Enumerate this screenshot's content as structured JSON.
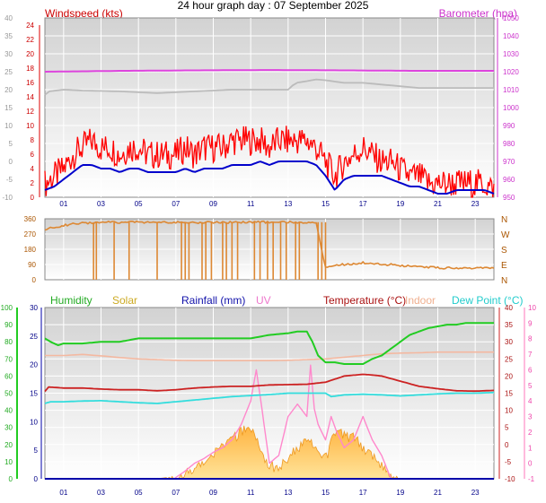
{
  "title": "24 hour graph day : 07 September 2025",
  "colors": {
    "wind_speed": "#ff0000",
    "wind_avg": "#0000cc",
    "barometer": "#dd44dd",
    "barometer_prev": "#bbbbbb",
    "direction": "#dd8833",
    "humidity": "#22cc22",
    "solar": "#ffcc55",
    "rainfall": "#0000aa",
    "uv": "#ff88cc",
    "temperature": "#cc2222",
    "indoor": "#f4b8a0",
    "dewpoint": "#33dddd",
    "grid": "#ffffff",
    "plot_bg_top": "#d4d4d4",
    "plot_bg_bottom": "#ffffff"
  },
  "chart_data": [
    {
      "type": "line",
      "panel": "wind-barometer",
      "x_ticks": [
        "01",
        "03",
        "05",
        "07",
        "09",
        "11",
        "13",
        "15",
        "17",
        "19",
        "21",
        "23"
      ],
      "legend": [
        "Windspeed (kts)",
        "Barometer (hpa)"
      ],
      "axes": {
        "left_outer": {
          "ticks": [
            "-10",
            "-5",
            "0",
            "5",
            "10",
            "15",
            "20",
            "25",
            "30",
            "35",
            "40"
          ]
        },
        "left_inner": {
          "label": "Windspeed (kts)",
          "ticks": [
            "0",
            "2",
            "4",
            "6",
            "8",
            "10",
            "12",
            "14",
            "16",
            "18",
            "20",
            "22",
            "24"
          ],
          "ylim": [
            0,
            25
          ]
        },
        "right": {
          "label": "Barometer (hpa)",
          "ticks": [
            "950",
            "960",
            "970",
            "980",
            "990",
            "1000",
            "1010",
            "1020",
            "1030",
            "1040",
            "1050"
          ],
          "ylim": [
            945,
            1050
          ]
        }
      },
      "series": [
        {
          "name": "Windspeed (kts)",
          "kind": "gust",
          "hours": [
            0,
            0.5,
            1,
            1.5,
            2,
            2.5,
            3,
            3.5,
            4,
            4.5,
            5,
            5.5,
            6,
            6.5,
            7,
            7.5,
            8,
            8.5,
            9,
            9.5,
            10,
            10.5,
            11,
            11.5,
            12,
            12.5,
            13,
            13.5,
            14,
            14.5,
            15,
            15.5,
            16,
            16.5,
            17,
            17.5,
            18,
            18.5,
            19,
            19.5,
            20,
            20.5,
            21,
            21.5,
            22,
            22.5,
            23,
            23.5,
            24
          ],
          "values": [
            2,
            3,
            4,
            6,
            7,
            8,
            7,
            7,
            6,
            7,
            7,
            6,
            6,
            6,
            6,
            7,
            6,
            7,
            7,
            7,
            8,
            8,
            8,
            8,
            7,
            8,
            8,
            8,
            8,
            7,
            5,
            3,
            5,
            6,
            7,
            6,
            5,
            5,
            4,
            3,
            3,
            2,
            2,
            2,
            2,
            2,
            2,
            2,
            1
          ]
        },
        {
          "name": "Average",
          "kind": "average",
          "hours": [
            0,
            0.5,
            1,
            1.5,
            2,
            2.5,
            3,
            3.5,
            4,
            4.5,
            5,
            5.5,
            6,
            6.5,
            7,
            7.5,
            8,
            8.5,
            9,
            9.5,
            10,
            10.5,
            11,
            11.5,
            12,
            12.5,
            13,
            13.5,
            14,
            14.5,
            15,
            15.5,
            16,
            16.5,
            17,
            17.5,
            18,
            18.5,
            19,
            19.5,
            20,
            20.5,
            21,
            21.5,
            22,
            22.5,
            23,
            23.5,
            24
          ],
          "values": [
            1,
            1.5,
            2.5,
            3.5,
            4.5,
            4.5,
            4,
            4,
            3.5,
            4,
            4,
            3.5,
            3.5,
            3.5,
            3.5,
            4,
            3.5,
            4,
            4,
            4,
            4.5,
            4.5,
            4.5,
            5,
            4.5,
            5,
            5,
            5,
            5,
            4.5,
            3,
            1,
            2.5,
            3,
            3,
            3,
            3,
            2.5,
            2,
            1.5,
            1.5,
            1,
            0.5,
            0.5,
            1,
            1,
            1,
            1,
            0.5
          ]
        },
        {
          "name": "Barometer (hpa)",
          "kind": "barometer",
          "hours": [
            0,
            4,
            8,
            12,
            16,
            20,
            24
          ],
          "values": [
            1018.5,
            1019,
            1019.3,
            1019.5,
            1019.3,
            1019,
            1019
          ]
        },
        {
          "name": "Barometer previous",
          "kind": "barometer_prev",
          "hours": [
            0,
            0.2,
            1,
            2,
            4,
            6,
            8,
            10,
            12,
            13,
            13.4,
            14,
            14.5,
            15,
            16,
            17,
            18,
            19,
            20,
            22,
            24
          ],
          "values": [
            1005,
            1007,
            1008,
            1007.5,
            1007,
            1006,
            1007,
            1008,
            1008,
            1008,
            1012,
            1013,
            1014,
            1013.5,
            1012,
            1012,
            1011,
            1010,
            1009,
            1009,
            1009
          ]
        }
      ]
    },
    {
      "type": "line",
      "panel": "wind-direction",
      "x_ticks": [
        "01",
        "03",
        "05",
        "07",
        "09",
        "11",
        "13",
        "15",
        "17",
        "19",
        "21",
        "23"
      ],
      "axes": {
        "left": {
          "ticks": [
            "0",
            "90",
            "180",
            "270",
            "360"
          ],
          "ylim": [
            0,
            360
          ]
        },
        "right": {
          "ticks": [
            "N",
            "E",
            "S",
            "W",
            "N"
          ]
        }
      },
      "series": [
        {
          "name": "Direction",
          "hours": [
            0,
            0.5,
            1,
            1.5,
            2,
            2.5,
            3,
            3.5,
            4,
            4.5,
            5,
            5.5,
            6,
            6.5,
            7,
            7.5,
            8,
            8.5,
            9,
            9.5,
            10,
            10.5,
            11,
            11.5,
            12,
            12.5,
            13,
            13.5,
            14,
            14.5,
            15,
            15.5,
            16,
            16.5,
            17,
            17.5,
            18,
            18.5,
            19,
            19.5,
            20,
            20.5,
            21,
            21.5,
            22,
            22.5,
            23,
            23.5,
            24
          ],
          "values": [
            300,
            310,
            320,
            330,
            335,
            335,
            338,
            340,
            338,
            340,
            340,
            340,
            338,
            340,
            340,
            338,
            338,
            340,
            340,
            340,
            338,
            340,
            340,
            340,
            340,
            340,
            340,
            340,
            340,
            340,
            70,
            85,
            90,
            95,
            100,
            95,
            90,
            90,
            85,
            80,
            80,
            75,
            70,
            70,
            70,
            70,
            68,
            68,
            68
          ],
          "drops_to_zero_at": [
            2.6,
            2.75,
            3.7,
            4.5,
            6.0,
            7.3,
            7.5,
            7.7,
            8.4,
            8.6,
            8.9,
            9.5,
            9.7,
            10.0,
            10.3,
            11.2,
            11.5,
            11.9,
            12.2,
            12.6,
            12.9,
            13.4,
            13.6,
            14.6,
            14.8,
            15.0
          ]
        }
      ]
    },
    {
      "type": "line",
      "panel": "temperature-humidity",
      "x_ticks": [
        "01",
        "03",
        "05",
        "07",
        "09",
        "11",
        "13",
        "15",
        "17",
        "19",
        "21",
        "23"
      ],
      "legend": [
        "Humidity",
        "Solar",
        "Rainfall (mm)",
        "UV",
        "Temperature (°C)",
        "Indoor",
        "Dew Point (°C)"
      ],
      "axes": {
        "humidity_outer": {
          "ticks": [
            "0",
            "10",
            "20",
            "30",
            "40",
            "50",
            "60",
            "70",
            "80",
            "90",
            "100"
          ],
          "ylim": [
            0,
            100
          ]
        },
        "rain_inner": {
          "ticks": [
            "0",
            "5",
            "10",
            "15",
            "20",
            "25",
            "30"
          ],
          "ylim": [
            0,
            30
          ]
        },
        "temperature_right": {
          "ticks": [
            "-10",
            "-5",
            "0",
            "5",
            "10",
            "15",
            "20",
            "25",
            "30",
            "35",
            "40"
          ],
          "ylim": [
            -10,
            40
          ]
        },
        "uv_outer_right": {
          "ticks": [
            "-1",
            "0",
            "1",
            "2",
            "3",
            "4",
            "5",
            "6",
            "7",
            "8",
            "9",
            "10"
          ],
          "ylim": [
            -1,
            10
          ]
        }
      },
      "series": [
        {
          "name": "Humidity",
          "hours": [
            0,
            0.3,
            0.7,
            1,
            2,
            3,
            4,
            5,
            6,
            7,
            8,
            9,
            10,
            11,
            12,
            13,
            13.5,
            14,
            14.3,
            14.6,
            15,
            15.5,
            16,
            17,
            17.5,
            18,
            18.5,
            19,
            19.5,
            20,
            20.5,
            21,
            21.5,
            22,
            22.5,
            23,
            24
          ],
          "values": [
            82,
            80,
            78,
            79,
            79,
            80,
            80,
            82,
            82,
            82,
            82,
            82,
            82,
            82,
            84,
            85,
            86,
            86,
            80,
            72,
            68,
            68,
            67,
            67,
            70,
            72,
            76,
            80,
            84,
            86,
            88,
            89,
            90,
            90,
            91,
            91,
            91
          ]
        },
        {
          "name": "Temperature (°C)",
          "hours": [
            0,
            0.2,
            1,
            2,
            3,
            4,
            5,
            6,
            7,
            8,
            9,
            10,
            11,
            12,
            13,
            14,
            15,
            16,
            17,
            17.5,
            18,
            19,
            20,
            21,
            22,
            23,
            24
          ],
          "values": [
            15.5,
            16.8,
            16.5,
            16.5,
            16.2,
            16,
            16,
            15.7,
            16,
            16.5,
            16.8,
            17,
            17,
            17.4,
            17.5,
            17.6,
            18.2,
            20,
            20.5,
            20.3,
            20,
            18.5,
            17,
            16.3,
            15.7,
            15.6,
            15.8
          ]
        },
        {
          "name": "Indoor",
          "hours": [
            0,
            1,
            2,
            3,
            4,
            5,
            6,
            7,
            8,
            9,
            10,
            11,
            12,
            13,
            14,
            15,
            16,
            17,
            18,
            19,
            20,
            21,
            22,
            23,
            24
          ],
          "values": [
            26,
            26,
            26.3,
            25.9,
            25.4,
            25,
            24.8,
            24.6,
            24.5,
            24.5,
            24.5,
            24.5,
            24.5,
            24.6,
            24.8,
            25,
            25.5,
            26,
            26.5,
            26.7,
            26.8,
            27,
            27,
            27,
            27
          ]
        },
        {
          "name": "Dew Point (°C)",
          "hours": [
            0,
            0.3,
            1,
            2,
            3,
            4,
            5,
            6,
            7,
            8,
            9,
            10,
            11,
            12,
            13,
            14,
            15,
            15.3,
            16,
            17,
            18,
            19,
            20,
            21,
            22,
            23,
            24
          ],
          "values": [
            12,
            12.5,
            12.5,
            12.7,
            12.8,
            12.5,
            12.2,
            12,
            12.5,
            13,
            13.5,
            14,
            14.3,
            14.6,
            15,
            15,
            15,
            14,
            14.5,
            14.7,
            14.5,
            14.2,
            14.5,
            14.8,
            15,
            15,
            15.2
          ]
        },
        {
          "name": "Solar",
          "hours": [
            0,
            6,
            6.5,
            7,
            7.5,
            8,
            8.5,
            9,
            9.5,
            10,
            10.5,
            11,
            11.5,
            12,
            12.5,
            13,
            13.5,
            14,
            14.5,
            15,
            15.5,
            16,
            16.5,
            17,
            17.5,
            18,
            18.5,
            19,
            24
          ],
          "values": [
            0,
            0,
            0.02,
            0.08,
            0.15,
            0.25,
            0.4,
            0.5,
            0.6,
            0.72,
            0.85,
            0.95,
            0.55,
            0.3,
            0.25,
            0.45,
            0.55,
            0.7,
            0.6,
            0.4,
            0.85,
            0.8,
            0.75,
            0.6,
            0.45,
            0.3,
            0.1,
            0,
            0
          ]
        },
        {
          "name": "UV",
          "hours": [
            0,
            6.9,
            7.5,
            8,
            8.5,
            9,
            9.5,
            10,
            10.5,
            11,
            11.3,
            11.6,
            12,
            12.5,
            13,
            13.5,
            14,
            14.2,
            14.4,
            14.6,
            15,
            15.3,
            15.6,
            16,
            16.5,
            17,
            17.5,
            18,
            18.5,
            24
          ],
          "values": [
            -1,
            -1,
            -0.5,
            0,
            0.3,
            0.7,
            1,
            1.5,
            2.5,
            4,
            6,
            3.5,
            0,
            0.5,
            3,
            3.8,
            3,
            6.3,
            3.5,
            2.5,
            1.5,
            3,
            2,
            1,
            1.5,
            3,
            1.5,
            0.5,
            -1,
            -1
          ]
        },
        {
          "name": "Rainfall (mm)",
          "hours": [
            0,
            24
          ],
          "values": [
            0,
            0
          ]
        }
      ]
    }
  ]
}
